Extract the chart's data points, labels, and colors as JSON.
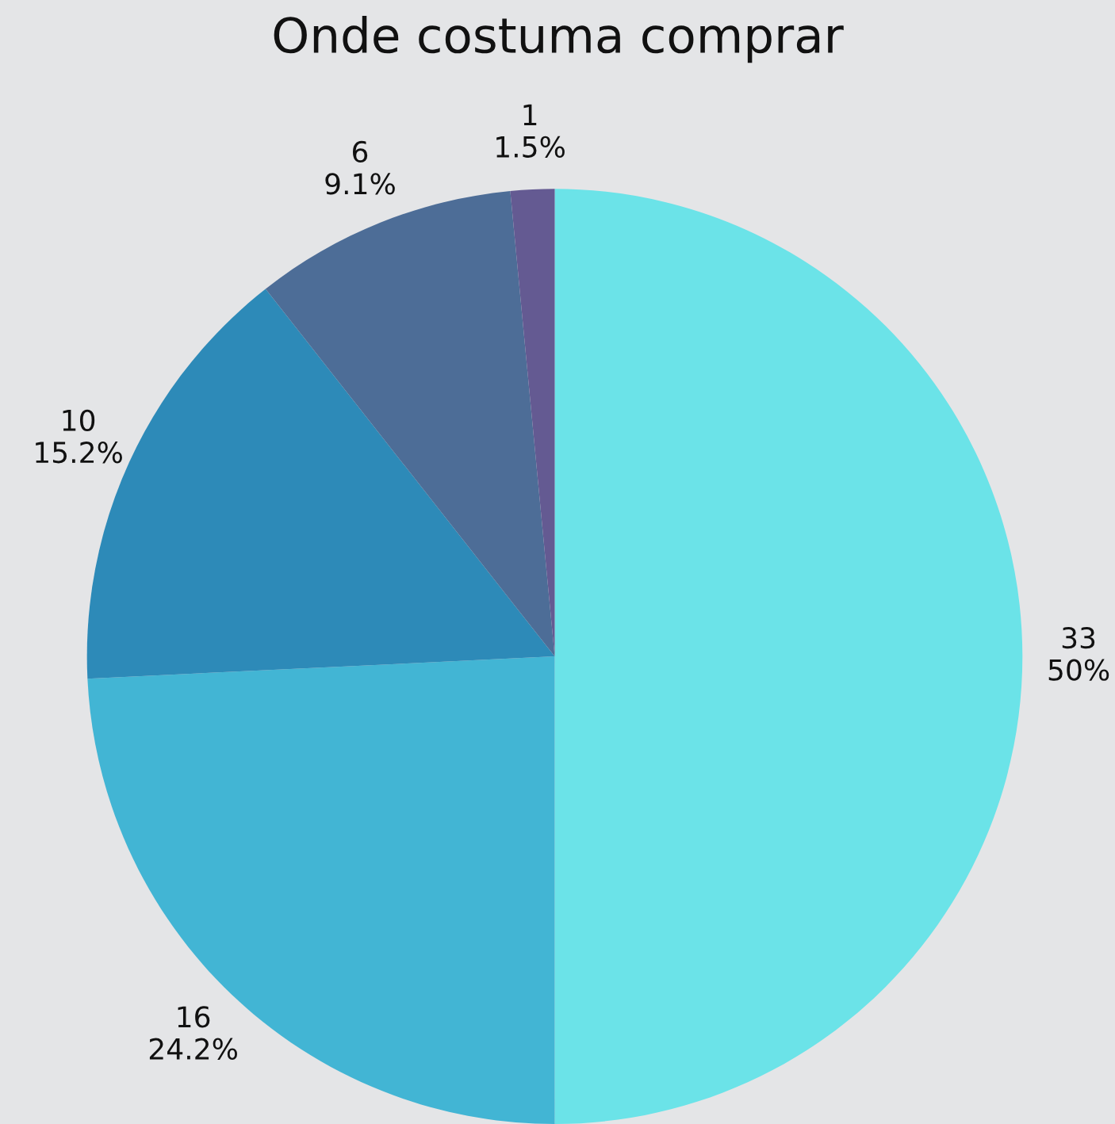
{
  "chart_data": {
    "type": "pie",
    "title": "Onde costuma comprar",
    "categories": [
      null,
      null,
      null,
      null,
      null
    ],
    "values": [
      33,
      16,
      10,
      6,
      1
    ],
    "colors": [
      "#6be3e8",
      "#42b5d4",
      "#2d8ab8",
      "#4d6d97",
      "#645a92"
    ],
    "value_labels": [
      "33\n50%",
      "16\n24.2%",
      "10\n15.2%",
      "6\n9.1%",
      "1\n1.5%"
    ]
  }
}
